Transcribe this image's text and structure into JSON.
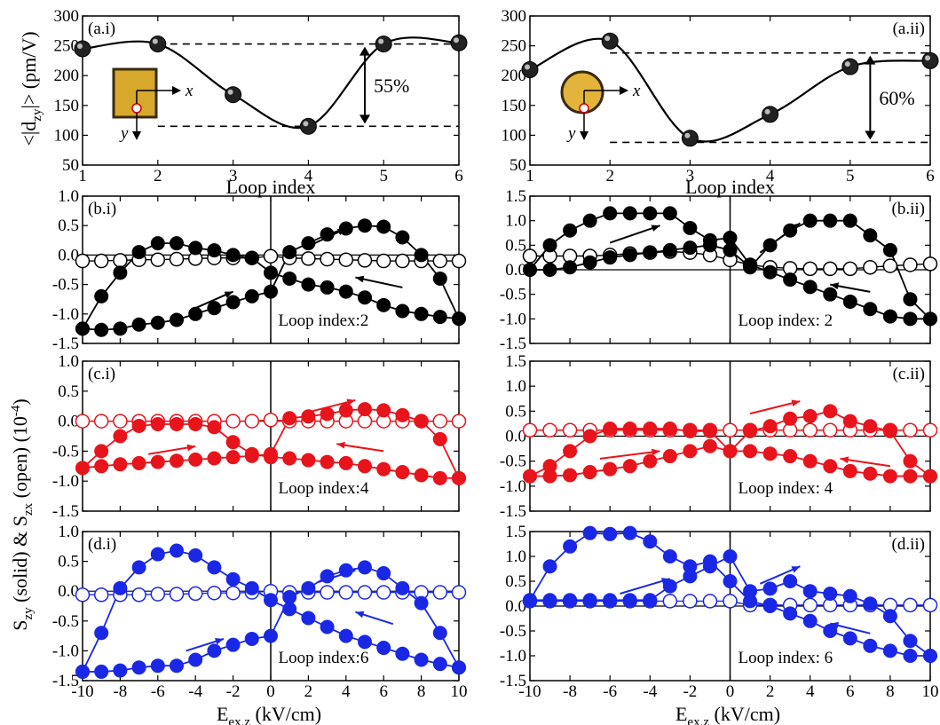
{
  "figure": {
    "shared_ylabel": {
      "main": "S",
      "sub1": "zy",
      "mid": " (solid) & S",
      "sub2": "zx",
      "end": " (open) (10",
      "sup": "-4",
      "close": ")"
    },
    "top_ylabel": {
      "main": "<|d",
      "sub": "zy",
      "end": "|> (pm/V)"
    },
    "bottom_xlabel": {
      "main": "E",
      "sub": "ex,z",
      "end": " (kV/cm)"
    },
    "top_xlabel": "Loop index"
  },
  "colors": {
    "black": "#000000",
    "red": "#e8141c",
    "blue": "#1a28e6"
  },
  "chart_data": [
    {
      "id": "a.i",
      "type": "line",
      "panel_label": "(a.i)",
      "x": [
        1,
        2,
        3,
        4,
        5,
        6
      ],
      "y": [
        245,
        253,
        168,
        115,
        253,
        255
      ],
      "xlim": [
        1,
        6
      ],
      "ylim": [
        50,
        300
      ],
      "xticks": [
        "1",
        "2",
        "3",
        "4",
        "5",
        "6"
      ],
      "yticks": [
        "50",
        "100",
        "150",
        "200",
        "250",
        "300"
      ],
      "xlabel": "Loop index",
      "ylabel": "<|dzy|> (pm/V)",
      "ref_lines": [
        253,
        115
      ],
      "annotation": "55%",
      "inset": {
        "shape": "square",
        "axis_x": "x",
        "axis_y": "y"
      }
    },
    {
      "id": "a.ii",
      "type": "line",
      "panel_label": "(a.ii)",
      "x": [
        1,
        2,
        3,
        4,
        5,
        6
      ],
      "y": [
        210,
        258,
        95,
        135,
        215,
        225
      ],
      "xlim": [
        1,
        6
      ],
      "ylim": [
        50,
        300
      ],
      "xticks": [
        "1",
        "2",
        "3",
        "4",
        "5",
        "6"
      ],
      "yticks": [
        "50",
        "100",
        "150",
        "200",
        "250",
        "300"
      ],
      "xlabel": "Loop index",
      "ref_lines": [
        238,
        88
      ],
      "annotation": "60%",
      "inset": {
        "shape": "circle",
        "axis_x": "x",
        "axis_y": "y"
      }
    },
    {
      "id": "b.i",
      "type": "scatter",
      "panel_label": "(b.i)",
      "color": "black",
      "loop_label": "Loop index:2",
      "xlim": [
        -10,
        10
      ],
      "ylim": [
        -1.5,
        1.0
      ],
      "yticks": [
        "-1.5",
        "-1.0",
        "-0.5",
        "0.0",
        "0.5",
        "1.0"
      ],
      "x": [
        -10,
        -9,
        -8,
        -7,
        -6,
        -5,
        -4,
        -3,
        -2,
        -1,
        0,
        1,
        2,
        3,
        4,
        5,
        6,
        7,
        8,
        9,
        10
      ],
      "solid_up": [
        -1.25,
        -1.27,
        -1.25,
        -1.18,
        -1.15,
        -1.1,
        -1.0,
        -0.9,
        -0.8,
        -0.7,
        -0.62,
        0.05,
        0.2,
        0.35,
        0.45,
        0.5,
        0.48,
        0.3,
        0.0,
        -0.4,
        -1.08
      ],
      "solid_down": [
        -1.25,
        -0.7,
        -0.3,
        0.05,
        0.2,
        0.2,
        0.12,
        0.08,
        0.0,
        -0.05,
        -0.3,
        -0.4,
        -0.5,
        -0.55,
        -0.62,
        -0.72,
        -0.85,
        -0.95,
        -1.0,
        -1.05,
        -1.08
      ],
      "open": [
        -0.1,
        -0.1,
        -0.09,
        -0.08,
        -0.08,
        -0.07,
        -0.06,
        -0.05,
        -0.05,
        -0.05,
        -0.02,
        -0.05,
        -0.06,
        -0.07,
        -0.08,
        -0.09,
        -0.1,
        -0.1,
        -0.1,
        -0.1,
        -0.1
      ],
      "arrows": [
        [
          -4,
          -0.9,
          -2,
          -0.62
        ],
        [
          2,
          0.15,
          4,
          0.45
        ],
        [
          7,
          -0.55,
          4.5,
          -0.38
        ]
      ]
    },
    {
      "id": "b.ii",
      "type": "scatter",
      "panel_label": "(b.ii)",
      "color": "black",
      "loop_label": "Loop index: 2",
      "xlim": [
        -10,
        10
      ],
      "ylim": [
        -1.5,
        1.5
      ],
      "yticks": [
        "-1.5",
        "-1.0",
        "-0.5",
        "0.0",
        "0.5",
        "1.0",
        "1.5"
      ],
      "x": [
        -10,
        -9,
        -8,
        -7,
        -6,
        -5,
        -4,
        -3,
        -2,
        -1,
        0,
        1,
        2,
        3,
        4,
        5,
        6,
        7,
        8,
        9,
        10
      ],
      "solid_up": [
        0.0,
        0.0,
        0.05,
        0.15,
        0.25,
        0.3,
        0.35,
        0.4,
        0.45,
        0.5,
        0.4,
        0.05,
        0.5,
        0.8,
        1.0,
        1.0,
        1.0,
        0.7,
        0.4,
        -0.6,
        -1.0
      ],
      "solid_down": [
        0.0,
        0.5,
        0.8,
        1.0,
        1.15,
        1.15,
        1.15,
        1.15,
        0.85,
        0.6,
        0.65,
        0.1,
        -0.05,
        -0.2,
        -0.35,
        -0.5,
        -0.65,
        -0.8,
        -0.95,
        -1.0,
        -1.0
      ],
      "open": [
        0.28,
        0.28,
        0.28,
        0.28,
        0.3,
        0.33,
        0.35,
        0.37,
        0.35,
        0.3,
        0.2,
        0.1,
        0.05,
        0.03,
        0.02,
        0.02,
        0.02,
        0.05,
        0.08,
        0.1,
        0.12
      ],
      "arrows": [
        [
          -6,
          0.55,
          -3.5,
          0.9
        ],
        [
          1.5,
          0.35,
          3.5,
          0.95
        ],
        [
          7,
          -0.45,
          5,
          -0.3
        ]
      ]
    },
    {
      "id": "c.i",
      "type": "scatter",
      "panel_label": "(c.i)",
      "color": "red",
      "loop_label": "Loop index:4",
      "xlim": [
        -10,
        10
      ],
      "ylim": [
        -1.5,
        1.0
      ],
      "yticks": [
        "-1.5",
        "-1.0",
        "-0.5",
        "0.0",
        "0.5",
        "1.0"
      ],
      "x": [
        -10,
        -9,
        -8,
        -7,
        -6,
        -5,
        -4,
        -3,
        -2,
        -1,
        0,
        1,
        2,
        3,
        4,
        5,
        6,
        7,
        8,
        9,
        10
      ],
      "solid_up": [
        -0.78,
        -0.75,
        -0.72,
        -0.7,
        -0.68,
        -0.66,
        -0.64,
        -0.62,
        -0.6,
        -0.58,
        -0.55,
        0.05,
        0.08,
        0.12,
        0.18,
        0.2,
        0.18,
        0.1,
        0.0,
        -0.3,
        -0.95
      ],
      "solid_down": [
        -0.78,
        -0.5,
        -0.25,
        -0.08,
        -0.05,
        -0.05,
        -0.05,
        -0.1,
        -0.35,
        -0.55,
        -0.6,
        -0.62,
        -0.65,
        -0.68,
        -0.7,
        -0.75,
        -0.8,
        -0.85,
        -0.9,
        -0.95,
        -0.95
      ],
      "open": [
        0.0,
        0.0,
        0.0,
        0.0,
        0.0,
        0.0,
        0.0,
        0.0,
        0.0,
        0.0,
        0.02,
        0.0,
        0.0,
        0.0,
        0.0,
        0.0,
        0.0,
        0.0,
        0.0,
        0.0,
        0.0
      ],
      "arrows": [
        [
          -6.5,
          -0.55,
          -4,
          -0.42
        ],
        [
          2,
          0.15,
          4.5,
          0.35
        ],
        [
          6,
          -0.5,
          3.5,
          -0.38
        ]
      ]
    },
    {
      "id": "c.ii",
      "type": "scatter",
      "panel_label": "(c.ii)",
      "color": "red",
      "loop_label": "Loop index: 4",
      "xlim": [
        -10,
        10
      ],
      "ylim": [
        -1.5,
        1.5
      ],
      "yticks": [
        "-1.5",
        "-1.0",
        "-0.5",
        "0.0",
        "0.5",
        "1.0",
        "1.5"
      ],
      "x": [
        -10,
        -9,
        -8,
        -7,
        -6,
        -5,
        -4,
        -3,
        -2,
        -1,
        0,
        1,
        2,
        3,
        4,
        5,
        6,
        7,
        8,
        9,
        10
      ],
      "solid_up": [
        -0.8,
        -0.8,
        -0.78,
        -0.72,
        -0.66,
        -0.6,
        -0.5,
        -0.4,
        -0.3,
        -0.2,
        -0.3,
        0.1,
        0.2,
        0.35,
        0.4,
        0.5,
        0.3,
        0.2,
        0.1,
        -0.5,
        -0.8
      ],
      "solid_down": [
        -0.8,
        -0.6,
        -0.3,
        0.0,
        0.15,
        0.15,
        0.15,
        0.15,
        0.1,
        0.1,
        -0.3,
        -0.3,
        -0.35,
        -0.4,
        -0.5,
        -0.6,
        -0.7,
        -0.75,
        -0.8,
        -0.8,
        -0.8
      ],
      "open": [
        0.12,
        0.12,
        0.12,
        0.12,
        0.12,
        0.12,
        0.12,
        0.12,
        0.12,
        0.12,
        0.12,
        0.12,
        0.12,
        0.12,
        0.12,
        0.12,
        0.12,
        0.12,
        0.12,
        0.12,
        0.12
      ],
      "arrows": [
        [
          -6.5,
          -0.45,
          -3.5,
          -0.3
        ],
        [
          1,
          0.45,
          3.5,
          0.7
        ],
        [
          8,
          -0.6,
          5.5,
          -0.45
        ]
      ]
    },
    {
      "id": "d.i",
      "type": "scatter",
      "panel_label": "(d.i)",
      "color": "blue",
      "loop_label": "Loop index:6",
      "xlim": [
        -10,
        10
      ],
      "ylim": [
        -1.5,
        1.0
      ],
      "yticks": [
        "-1.5",
        "-1.0",
        "-0.5",
        "0.0",
        "0.5",
        "1.0"
      ],
      "x": [
        -10,
        -9,
        -8,
        -7,
        -6,
        -5,
        -4,
        -3,
        -2,
        -1,
        0,
        1,
        2,
        3,
        4,
        5,
        6,
        7,
        8,
        9,
        10
      ],
      "solid_up": [
        -1.35,
        -1.35,
        -1.33,
        -1.28,
        -1.25,
        -1.25,
        -1.15,
        -1.0,
        -0.9,
        -0.8,
        -0.75,
        -0.1,
        0.05,
        0.25,
        0.35,
        0.4,
        0.3,
        0.05,
        -0.2,
        -0.7,
        -1.28
      ],
      "solid_down": [
        -1.35,
        -0.7,
        0.05,
        0.4,
        0.62,
        0.68,
        0.6,
        0.4,
        0.2,
        0.05,
        -0.15,
        -0.3,
        -0.45,
        -0.6,
        -0.75,
        -0.85,
        -0.95,
        -1.05,
        -1.15,
        -1.22,
        -1.28
      ],
      "open": [
        -0.06,
        -0.06,
        -0.06,
        -0.06,
        -0.05,
        -0.05,
        -0.04,
        -0.03,
        -0.03,
        -0.02,
        0.0,
        -0.02,
        -0.02,
        -0.02,
        -0.02,
        -0.02,
        -0.02,
        -0.02,
        -0.02,
        -0.02,
        -0.02
      ],
      "arrows": [
        [
          -4.5,
          -1.0,
          -2.5,
          -0.8
        ],
        [
          2.5,
          0.15,
          4.5,
          0.35
        ],
        [
          6.5,
          -0.55,
          4.5,
          -0.35
        ]
      ]
    },
    {
      "id": "d.ii",
      "type": "scatter",
      "panel_label": "(d.ii)",
      "color": "blue",
      "loop_label": "Loop index: 6",
      "xlim": [
        -10,
        10
      ],
      "ylim": [
        -1.5,
        1.5
      ],
      "yticks": [
        "-1.5",
        "-1.0",
        "-0.5",
        "0.0",
        "0.5",
        "1.0",
        "1.5"
      ],
      "x": [
        -10,
        -9,
        -8,
        -7,
        -6,
        -5,
        -4,
        -3,
        -2,
        -1,
        0,
        1,
        2,
        3,
        4,
        5,
        6,
        7,
        8,
        9,
        10
      ],
      "solid_up": [
        0.12,
        0.12,
        0.12,
        0.12,
        0.12,
        0.12,
        0.12,
        0.4,
        0.6,
        0.8,
        1.0,
        0.3,
        0.35,
        0.5,
        0.3,
        0.25,
        0.2,
        0.05,
        -0.2,
        -0.7,
        -1.0
      ],
      "solid_down": [
        0.12,
        0.8,
        1.2,
        1.47,
        1.45,
        1.47,
        1.3,
        1.0,
        0.8,
        0.9,
        0.5,
        0.1,
        0.0,
        -0.15,
        -0.3,
        -0.5,
        -0.65,
        -0.8,
        -0.9,
        -1.0,
        -1.0
      ],
      "open": [
        0.1,
        0.1,
        0.1,
        0.1,
        0.1,
        0.1,
        0.1,
        0.1,
        0.1,
        0.1,
        0.1,
        0.02,
        0.02,
        0.02,
        0.02,
        0.02,
        0.02,
        0.02,
        0.02,
        0.02,
        0.02
      ],
      "arrows": [
        [
          -5.5,
          0.25,
          -3,
          0.55
        ],
        [
          1.5,
          0.45,
          3.5,
          0.8
        ],
        [
          7,
          -0.55,
          5,
          -0.35
        ]
      ]
    }
  ],
  "x_ticks_bottom": [
    "-10",
    "-8",
    "-6",
    "-4",
    "-2",
    "0",
    "2",
    "4",
    "6",
    "8",
    "10"
  ]
}
